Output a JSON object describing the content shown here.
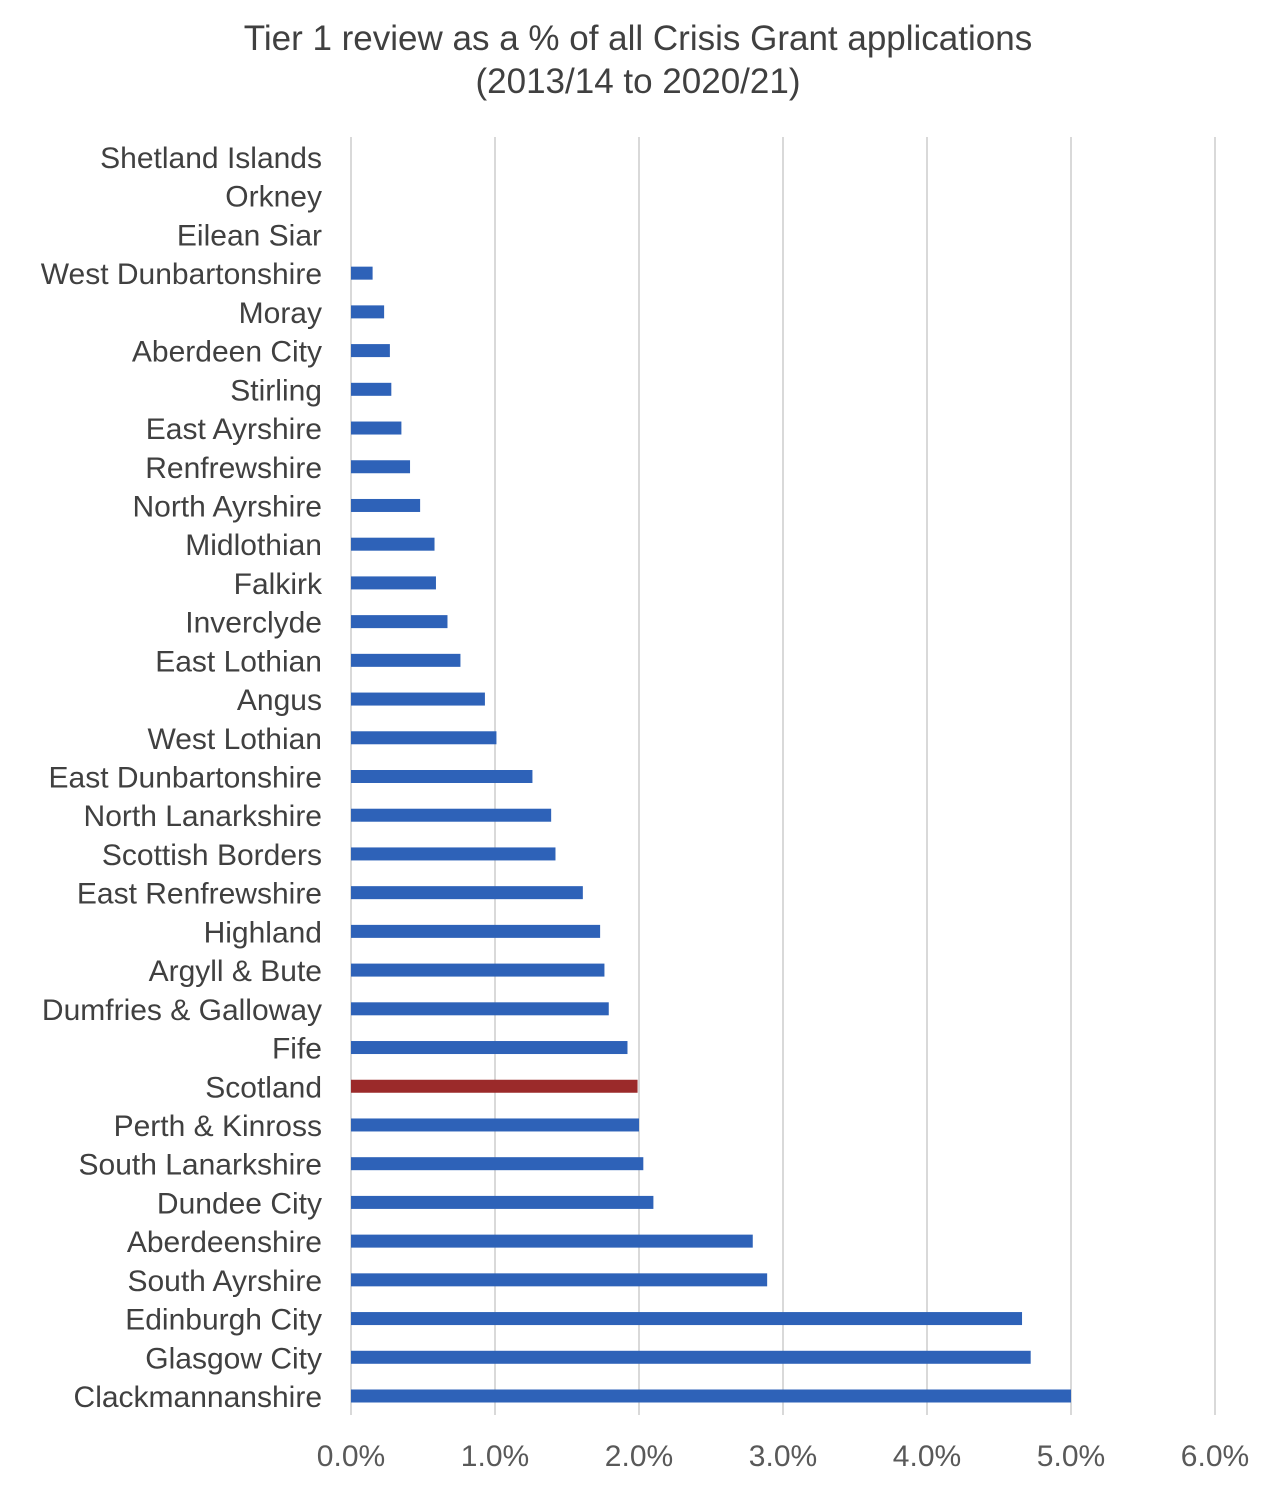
{
  "chart_data": {
    "type": "bar",
    "orientation": "horizontal",
    "title": "Tier 1 review as a % of all Crisis Grant applications",
    "subtitle": "(2013/14 to 2020/21)",
    "xlim": [
      0,
      6
    ],
    "x_ticks": [
      "0.0%",
      "1.0%",
      "2.0%",
      "3.0%",
      "4.0%",
      "5.0%",
      "6.0%"
    ],
    "grid": "vertical",
    "categories": [
      "Shetland Islands",
      "Orkney",
      "Eilean Siar",
      "West Dunbartonshire",
      "Moray",
      "Aberdeen City",
      "Stirling",
      "East Ayrshire",
      "Renfrewshire",
      "North Ayrshire",
      "Midlothian",
      "Falkirk",
      "Inverclyde",
      "East Lothian",
      "Angus",
      "West Lothian",
      "East Dunbartonshire",
      "North Lanarkshire",
      "Scottish Borders",
      "East Renfrewshire",
      "Highland",
      "Argyll & Bute",
      "Dumfries & Galloway",
      "Fife",
      "Scotland",
      "Perth & Kinross",
      "South Lanarkshire",
      "Dundee City",
      "Aberdeenshire",
      "South Ayrshire",
      "Edinburgh City",
      "Glasgow City",
      "Clackmannanshire"
    ],
    "values": [
      0.0,
      0.0,
      0.0,
      0.15,
      0.23,
      0.27,
      0.28,
      0.35,
      0.41,
      0.48,
      0.58,
      0.59,
      0.67,
      0.76,
      0.93,
      1.01,
      1.26,
      1.39,
      1.42,
      1.61,
      1.73,
      1.76,
      1.79,
      1.92,
      1.99,
      2.0,
      2.03,
      2.1,
      2.79,
      2.89,
      4.66,
      4.72,
      5.0
    ],
    "colors": {
      "default": "#2E62B8",
      "highlight": "#9B2A2A",
      "highlight_category": "Scotland",
      "grid": "#D9D9D9",
      "axis": "#D9D9D9"
    }
  }
}
